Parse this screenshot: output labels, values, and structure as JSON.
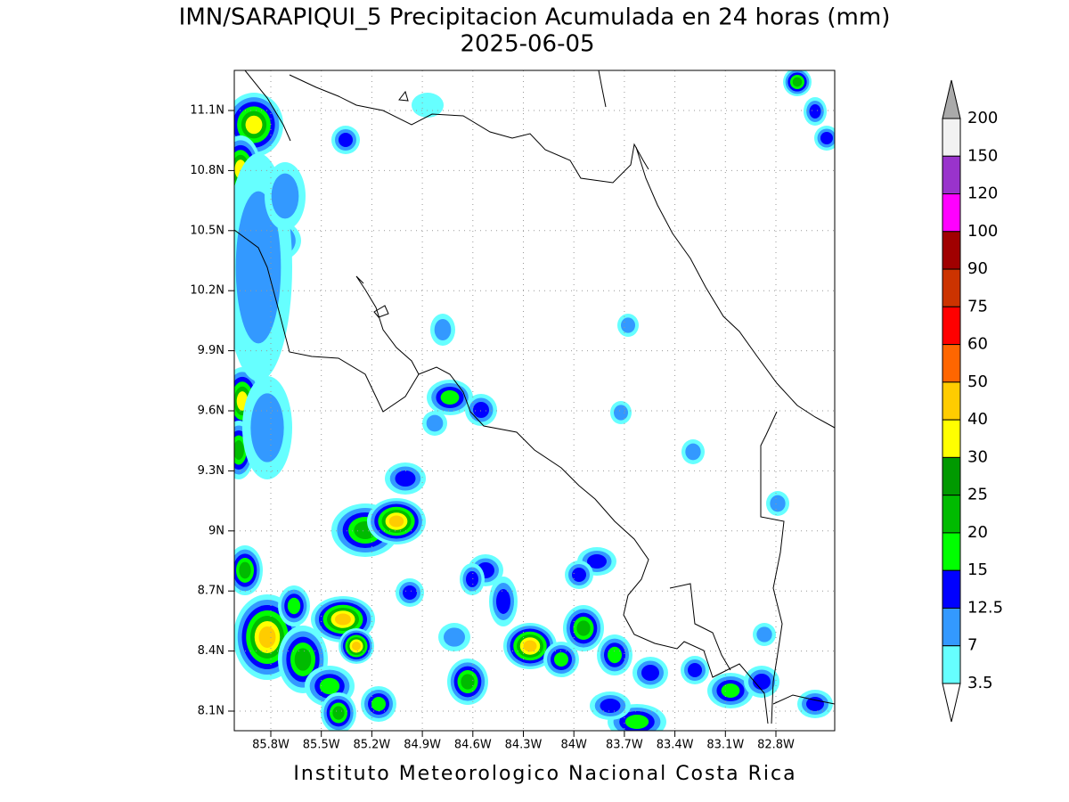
{
  "title": "IMN/SARAPIQUI_5 Precipitacion Acumulada en 24 horas (mm)",
  "subtitle": "2025-06-05",
  "map": {
    "lat_ticks": [
      "11.1N",
      "10.8N",
      "10.5N",
      "10.2N",
      "9.9N",
      "9.6N",
      "9.3N",
      "9N",
      "8.7N",
      "8.4N",
      "8.1N"
    ],
    "lon_ticks": [
      "85.8W",
      "85.5W",
      "85.2W",
      "84.9W",
      "84.6W",
      "84.3W",
      "84W",
      "83.7W",
      "83.4W",
      "83.1W",
      "82.8W"
    ],
    "grid": true
  },
  "colorbar": {
    "labels": [
      200,
      150,
      120,
      100,
      90,
      75,
      60,
      50,
      40,
      30,
      25,
      20,
      15,
      12.5,
      7,
      3.5
    ],
    "colors": [
      "#f2f2f2",
      "#9933cc",
      "#ff00ff",
      "#a00000",
      "#cc3300",
      "#ff0000",
      "#ff6600",
      "#ffcc00",
      "#ffff00",
      "#009900",
      "#00bb00",
      "#00ff00",
      "#0000ff",
      "#3399ff",
      "#66ffff"
    ],
    "over_color": "#aaaaaa",
    "under_color": "#ffffff"
  },
  "footer": "Instituto Meteorologico Nacional Costa Rica"
}
